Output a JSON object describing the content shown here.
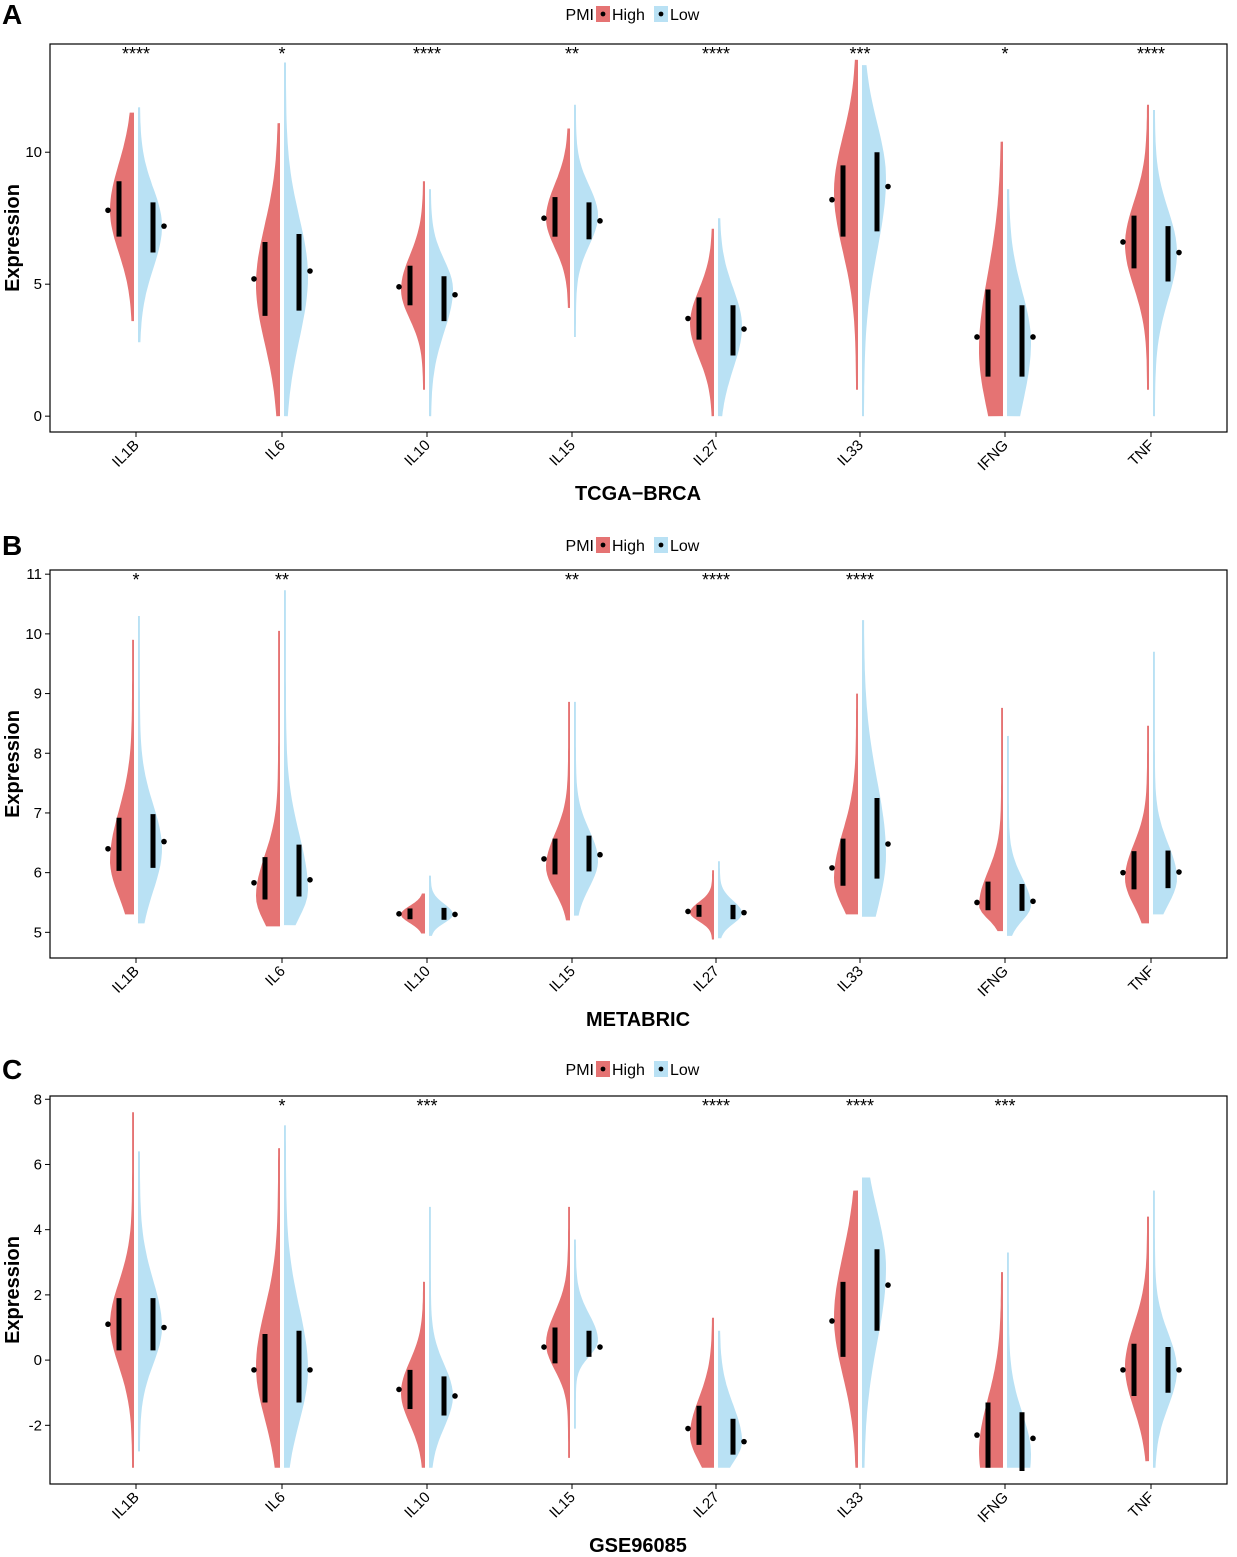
{
  "colors": {
    "high": "#e57373",
    "low": "#b9e1f4",
    "box": "#000000"
  },
  "chart_data": [
    {
      "panel_label": "A",
      "type": "violin",
      "title": "TCGA−BRCA",
      "ylabel": "Expression",
      "legend": {
        "title": "PMI",
        "entries": [
          "High",
          "Low"
        ],
        "position": "top-center"
      },
      "ylim": [
        -0.6,
        14.1
      ],
      "yticks": [
        0,
        5,
        10
      ],
      "categories": [
        "IL1B",
        "IL6",
        "IL10",
        "IL15",
        "IL27",
        "IL33",
        "IFNG",
        "TNF"
      ],
      "significance": [
        "****",
        "*",
        "****",
        "**",
        "****",
        "***",
        "*",
        "****"
      ],
      "series": [
        {
          "name": "High",
          "min": [
            3.6,
            0.0,
            1.0,
            4.1,
            0.0,
            1.0,
            0.0,
            1.0
          ],
          "max": [
            11.5,
            11.1,
            8.9,
            10.9,
            7.1,
            13.5,
            10.4,
            11.8
          ],
          "q1": [
            6.8,
            3.8,
            4.2,
            6.8,
            2.9,
            6.8,
            1.5,
            5.6
          ],
          "q3": [
            8.9,
            6.6,
            5.7,
            8.3,
            4.5,
            9.5,
            4.8,
            7.6
          ],
          "median": [
            7.8,
            5.2,
            4.9,
            7.5,
            3.7,
            8.2,
            3.0,
            6.6
          ],
          "mode": [
            7.8,
            5.0,
            4.8,
            7.5,
            3.5,
            8.5,
            2.5,
            6.5
          ]
        },
        {
          "name": "Low",
          "min": [
            2.8,
            0.0,
            0.0,
            3.0,
            0.0,
            0.0,
            0.0,
            0.0
          ],
          "max": [
            11.7,
            13.4,
            8.6,
            11.8,
            7.5,
            13.3,
            8.6,
            11.6
          ],
          "q1": [
            6.2,
            4.0,
            3.6,
            6.7,
            2.3,
            7.0,
            1.5,
            5.1
          ],
          "q3": [
            8.1,
            6.9,
            5.3,
            8.1,
            4.2,
            10.0,
            4.2,
            7.2
          ],
          "median": [
            7.2,
            5.5,
            4.6,
            7.4,
            3.3,
            8.7,
            3.0,
            6.2
          ],
          "mode": [
            7.2,
            5.3,
            4.8,
            7.6,
            3.4,
            9.0,
            2.8,
            6.2
          ]
        }
      ]
    },
    {
      "panel_label": "B",
      "type": "violin",
      "title": "METABRIC",
      "ylabel": "Expression",
      "legend": {
        "title": "PMI",
        "entries": [
          "High",
          "Low"
        ],
        "position": "top-center"
      },
      "ylim": [
        4.57,
        11.07
      ],
      "yticks": [
        5,
        6,
        7,
        8,
        9,
        10,
        11
      ],
      "categories": [
        "IL1B",
        "IL6",
        "IL10",
        "IL15",
        "IL27",
        "IL33",
        "IFNG",
        "TNF"
      ],
      "significance": [
        "*",
        "**",
        "",
        "**",
        "****",
        "****",
        "",
        ""
      ],
      "series": [
        {
          "name": "High",
          "min": [
            5.3,
            5.1,
            4.98,
            5.2,
            4.88,
            5.3,
            5.02,
            5.15
          ],
          "max": [
            9.9,
            10.05,
            5.65,
            8.86,
            6.04,
            9.0,
            8.76,
            8.46
          ],
          "q1": [
            6.03,
            5.55,
            5.22,
            5.97,
            5.26,
            5.78,
            5.37,
            5.72
          ],
          "q3": [
            6.92,
            6.26,
            5.4,
            6.57,
            5.46,
            6.57,
            5.85,
            6.36
          ],
          "median": [
            6.4,
            5.83,
            5.31,
            6.23,
            5.35,
            6.08,
            5.5,
            6.0
          ],
          "mode": [
            6.2,
            5.6,
            5.3,
            6.1,
            5.33,
            5.9,
            5.45,
            5.9
          ]
        },
        {
          "name": "Low",
          "min": [
            5.15,
            5.12,
            4.94,
            5.28,
            4.9,
            5.26,
            4.94,
            5.3
          ],
          "max": [
            10.3,
            10.73,
            5.95,
            8.86,
            6.19,
            10.23,
            8.29,
            9.7
          ],
          "q1": [
            6.08,
            5.6,
            5.21,
            6.02,
            5.22,
            5.9,
            5.36,
            5.74
          ],
          "q3": [
            6.98,
            6.47,
            5.41,
            6.62,
            5.46,
            7.25,
            5.81,
            6.37
          ],
          "median": [
            6.52,
            5.88,
            5.3,
            6.3,
            5.33,
            6.48,
            5.52,
            6.01
          ],
          "mode": [
            6.4,
            5.7,
            5.3,
            6.2,
            5.32,
            6.3,
            5.45,
            5.9
          ]
        }
      ]
    },
    {
      "panel_label": "C",
      "type": "violin",
      "title": "GSE96085",
      "ylabel": "Expression",
      "legend": {
        "title": "PMI",
        "entries": [
          "High",
          "Low"
        ],
        "position": "top-center"
      },
      "ylim": [
        -3.8,
        8.1
      ],
      "yticks": [
        -2,
        0,
        2,
        4,
        6,
        8
      ],
      "categories": [
        "IL1B",
        "IL6",
        "IL10",
        "IL15",
        "IL27",
        "IL33",
        "IFNG",
        "TNF"
      ],
      "significance": [
        "",
        "*",
        "***",
        "",
        "****",
        "****",
        "***",
        ""
      ],
      "series": [
        {
          "name": "High",
          "min": [
            -3.3,
            -3.3,
            -3.3,
            -3.0,
            -3.3,
            -3.3,
            -3.3,
            -3.1
          ],
          "max": [
            7.6,
            6.5,
            2.4,
            4.7,
            1.3,
            5.2,
            2.7,
            4.4
          ],
          "q1": [
            0.3,
            -1.3,
            -1.5,
            -0.1,
            -2.6,
            0.1,
            -3.3,
            -1.1
          ],
          "q3": [
            1.9,
            0.8,
            -0.3,
            1.0,
            -1.4,
            2.4,
            -1.3,
            0.5
          ],
          "median": [
            1.1,
            -0.3,
            -0.9,
            0.4,
            -2.1,
            1.2,
            -2.3,
            -0.3
          ],
          "mode": [
            1.1,
            -0.2,
            -1.0,
            0.5,
            -2.3,
            1.3,
            -2.8,
            -0.2
          ]
        },
        {
          "name": "Low",
          "min": [
            -2.8,
            -3.3,
            -3.3,
            -2.1,
            -3.3,
            -3.3,
            -3.3,
            -3.3
          ],
          "max": [
            6.4,
            7.2,
            4.7,
            3.7,
            0.9,
            5.6,
            3.3,
            5.2
          ],
          "q1": [
            0.3,
            -1.3,
            -1.7,
            0.1,
            -2.9,
            0.9,
            -3.4,
            -1.0
          ],
          "q3": [
            1.9,
            0.9,
            -0.5,
            0.9,
            -1.8,
            3.4,
            -1.6,
            0.4
          ],
          "median": [
            1.0,
            -0.3,
            -1.1,
            0.4,
            -2.5,
            2.3,
            -2.4,
            -0.3
          ],
          "mode": [
            1.0,
            -0.3,
            -1.1,
            0.6,
            -2.5,
            2.8,
            -2.9,
            -0.3
          ]
        }
      ]
    }
  ]
}
